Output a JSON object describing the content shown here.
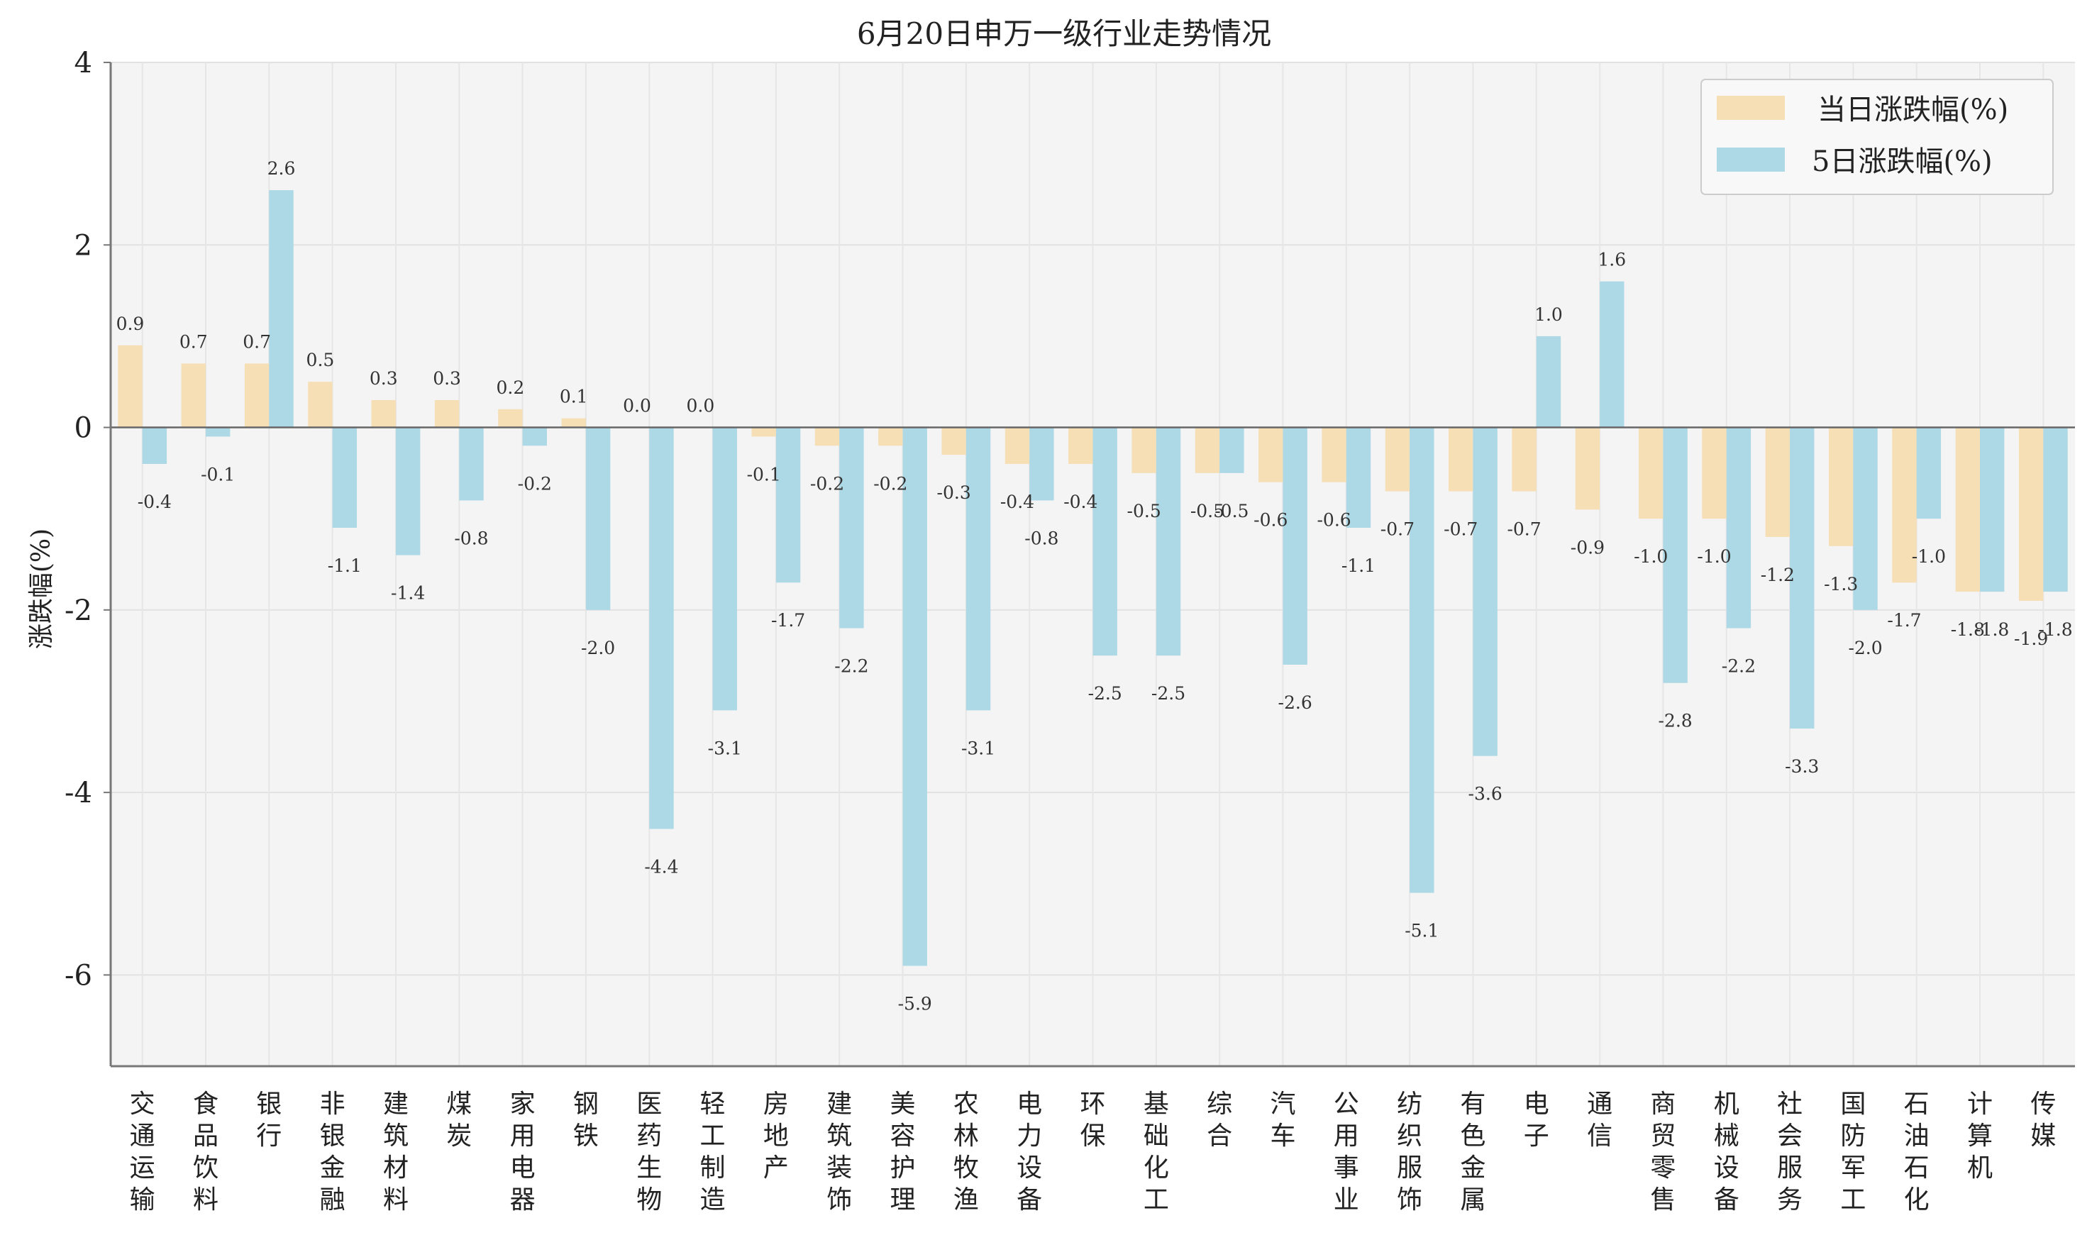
{
  "chart_data": {
    "type": "bar",
    "title": "6月20日申万一级行业走势情况",
    "xlabel": "",
    "ylabel": "涨跌幅(%)",
    "ylim": [
      -7,
      4
    ],
    "yticks": [
      4,
      2,
      0,
      -2,
      -4,
      -6
    ],
    "grid": true,
    "legend_position": "top-right",
    "categories": [
      "交通运输",
      "食品饮料",
      "银行",
      "非银金融",
      "建筑材料",
      "煤炭",
      "家用电器",
      "钢铁",
      "医药生物",
      "轻工制造",
      "房地产",
      "建筑装饰",
      "美容护理",
      "农林牧渔",
      "电力设备",
      "环保",
      "基础化工",
      "综合",
      "汽车",
      "公用事业",
      "纺织服饰",
      "有色金属",
      "电子",
      "通信",
      "商贸零售",
      "机械设备",
      "社会服务",
      "国防军工",
      "石油石化",
      "计算机",
      "传媒"
    ],
    "series": [
      {
        "name": "当日涨跌幅(%)",
        "color": "#f6deb5",
        "values": [
          0.9,
          0.7,
          0.7,
          0.5,
          0.3,
          0.3,
          0.2,
          0.1,
          0.0,
          0.0,
          -0.1,
          -0.2,
          -0.2,
          -0.3,
          -0.4,
          -0.4,
          -0.5,
          -0.5,
          -0.6,
          -0.6,
          -0.7,
          -0.7,
          -0.7,
          -0.9,
          -1.0,
          -1.0,
          -1.2,
          -1.3,
          -1.7,
          -1.8,
          -1.9
        ]
      },
      {
        "name": "5日涨跌幅(%)",
        "color": "#add8e6",
        "values": [
          -0.4,
          -0.1,
          2.6,
          -1.1,
          -1.4,
          -0.8,
          -0.2,
          -2.0,
          -4.4,
          -3.1,
          -1.7,
          -2.2,
          -5.9,
          -3.1,
          -0.8,
          -2.5,
          -2.5,
          -0.5,
          -2.6,
          -1.1,
          -5.1,
          -3.6,
          1.0,
          1.6,
          -2.8,
          -2.2,
          -3.3,
          -2.0,
          -1.0,
          -1.8,
          -1.8
        ]
      }
    ]
  }
}
